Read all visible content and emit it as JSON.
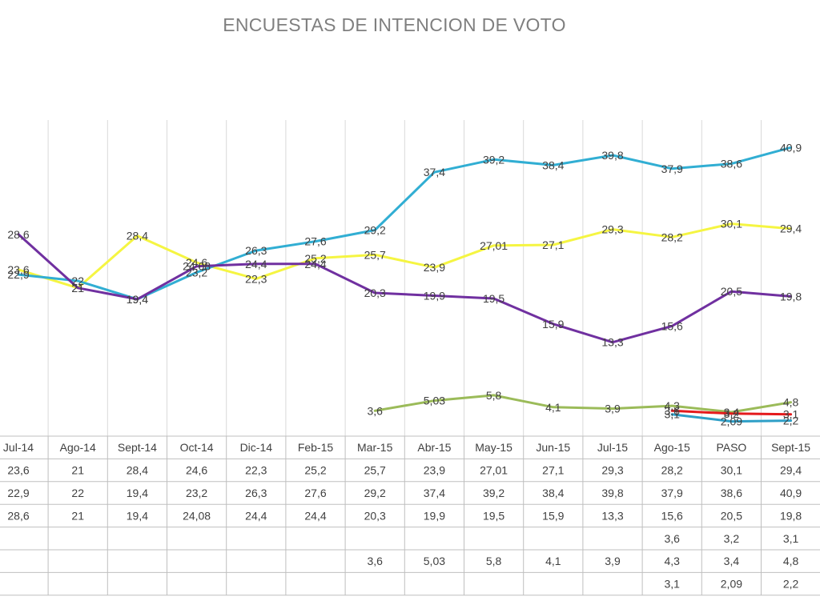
{
  "chart_data": {
    "type": "line",
    "title": "ENCUESTAS DE INTENCION DE VOTO",
    "categories": [
      "Jul-14",
      "Ago-14",
      "Sept-14",
      "Oct-14",
      "Dic-14",
      "Feb-15",
      "Mar-15",
      "Abr-15",
      "May-15",
      "Jun-15",
      "Jul-15",
      "Ago-15",
      "PASO",
      "Sept-15"
    ],
    "series": [
      {
        "color": "#f5f542",
        "values": [
          23.6,
          21,
          28.4,
          24.6,
          22.3,
          25.2,
          25.7,
          23.9,
          27.01,
          27.1,
          29.3,
          28.2,
          30.1,
          29.4
        ],
        "labels": [
          "23,6",
          "21",
          "28,4",
          "24,6",
          "22,3",
          "25,2",
          "25,7",
          "23,9",
          "27,01",
          "27,1",
          "29,3",
          "28,2",
          "30,1",
          "29,4"
        ]
      },
      {
        "color": "#31aed3",
        "values": [
          22.9,
          22,
          19.4,
          23.2,
          26.3,
          27.6,
          29.2,
          37.4,
          39.2,
          38.4,
          39.8,
          37.9,
          38.6,
          40.9
        ],
        "labels": [
          "22,9",
          "22",
          "19,4",
          "23,2",
          "26,3",
          "27,6",
          "29,2",
          "37,4",
          "39,2",
          "38,4",
          "39,8",
          "37,9",
          "38,6",
          "40,9"
        ]
      },
      {
        "color": "#7030a0",
        "values": [
          28.6,
          21,
          19.4,
          24.08,
          24.4,
          24.4,
          20.3,
          19.9,
          19.5,
          15.9,
          13.3,
          15.6,
          20.5,
          19.8
        ],
        "labels": [
          "28,6",
          "21",
          "19,4",
          "24,08",
          "24,4",
          "24,4",
          "20,3",
          "19,9",
          "19,5",
          "15,9",
          "13,3",
          "15,6",
          "20,5",
          "19,8"
        ]
      },
      {
        "color": "#e41a1c",
        "values": [
          null,
          null,
          null,
          null,
          null,
          null,
          null,
          null,
          null,
          null,
          null,
          3.6,
          3.2,
          3.1
        ],
        "labels": [
          "",
          "",
          "",
          "",
          "",
          "",
          "",
          "",
          "",
          "",
          "",
          "3,6",
          "3,2",
          "3,1"
        ]
      },
      {
        "color": "#9bbb59",
        "values": [
          null,
          null,
          null,
          null,
          null,
          null,
          3.6,
          5.03,
          5.8,
          4.1,
          3.9,
          4.3,
          3.4,
          4.8
        ],
        "labels": [
          "",
          "",
          "",
          "",
          "",
          "",
          "3,6",
          "5,03",
          "5,8",
          "4,1",
          "3,9",
          "4,3",
          "3,4",
          "4,8"
        ]
      },
      {
        "color": "#2e9fc7",
        "values": [
          null,
          null,
          null,
          null,
          null,
          null,
          null,
          null,
          null,
          null,
          null,
          3.1,
          2.09,
          2.2
        ],
        "labels": [
          "",
          "",
          "",
          "",
          "",
          "",
          "",
          "",
          "",
          "",
          "",
          "3,1",
          "2,09",
          "2,2"
        ]
      }
    ],
    "ylim": [
      0,
      55
    ],
    "grid": "vertical",
    "legend": "none"
  }
}
